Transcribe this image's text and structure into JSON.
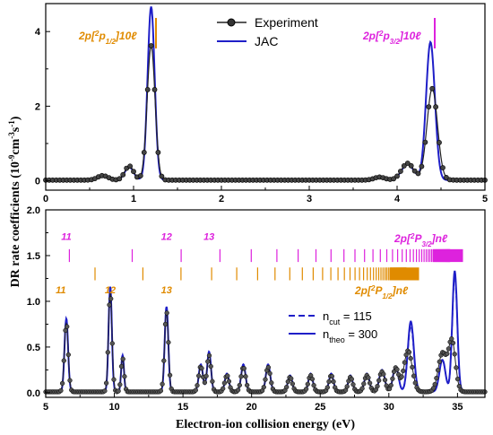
{
  "chart_data": [
    {
      "type": "line",
      "panel": "top",
      "xlim": [
        0,
        5
      ],
      "ylim": [
        -0.25,
        4.75
      ],
      "x_ticks": [
        "0",
        "1",
        "2",
        "3",
        "4",
        "5"
      ],
      "y_ticks": [
        "0",
        "2",
        "4"
      ],
      "legend": {
        "position": "top-center",
        "entries": [
          "Experiment",
          "JAC"
        ]
      },
      "colors": {
        "experiment": "#222222",
        "jac": "#1f1fc8",
        "p12": "#e08b00",
        "p32": "#dd22dd"
      },
      "series": [
        {
          "name": "Experiment",
          "style": "black line with circle markers",
          "peaks": [
            [
              0.65,
              0.12,
              0.06
            ],
            [
              0.95,
              0.38,
              0.05
            ],
            [
              1.2,
              3.6,
              0.045
            ],
            [
              3.8,
              0.08,
              0.06
            ],
            [
              4.12,
              0.45,
              0.07
            ],
            [
              4.4,
              2.45,
              0.06
            ]
          ]
        },
        {
          "name": "JAC",
          "style": "blue line",
          "peaks": [
            [
              0.65,
              0.1,
              0.06
            ],
            [
              0.95,
              0.35,
              0.05
            ],
            [
              1.2,
              4.65,
              0.04
            ],
            [
              3.8,
              0.07,
              0.06
            ],
            [
              4.12,
              0.42,
              0.07
            ],
            [
              4.38,
              3.7,
              0.05
            ]
          ]
        }
      ],
      "annotations": [
        {
          "text": "2p[²p₁/₂]10ℓ",
          "color": "#e08b00",
          "marker_x": 1.25
        },
        {
          "text": "2p[²p₃/₂]10ℓ",
          "color": "#dd22dd",
          "marker_x": 4.43
        }
      ]
    },
    {
      "type": "line",
      "panel": "bottom",
      "xlabel": "Electron-ion collision energy (eV)",
      "xlim": [
        5,
        37
      ],
      "ylim": [
        -0.05,
        2.0
      ],
      "x_ticks": [
        "5",
        "10",
        "15",
        "20",
        "25",
        "30",
        "35"
      ],
      "y_ticks": [
        "0.0",
        "0.5",
        "1.0",
        "1.5",
        "2.0"
      ],
      "legend": {
        "position": "lower-right",
        "entries": [
          "n_cut = 115",
          "n_theo = 300"
        ]
      },
      "series": [
        {
          "name": "n_cut = 115",
          "style": "blue dashed",
          "peaks": [
            [
              6.5,
              0.8,
              0.13
            ],
            [
              9.7,
              1.15,
              0.12
            ],
            [
              10.6,
              0.4,
              0.1
            ],
            [
              13.8,
              0.93,
              0.13
            ],
            [
              16.3,
              0.3,
              0.15
            ],
            [
              16.9,
              0.44,
              0.14
            ],
            [
              18.2,
              0.2,
              0.15
            ],
            [
              19.4,
              0.3,
              0.16
            ],
            [
              21.2,
              0.3,
              0.16
            ],
            [
              22.8,
              0.18,
              0.16
            ],
            [
              24.3,
              0.2,
              0.16
            ],
            [
              25.8,
              0.2,
              0.16
            ],
            [
              27.2,
              0.18,
              0.16
            ],
            [
              28.4,
              0.2,
              0.18
            ],
            [
              29.5,
              0.24,
              0.2
            ],
            [
              30.5,
              0.28,
              0.2
            ],
            [
              31.6,
              0.72,
              0.22
            ],
            [
              33.9,
              0.35,
              0.22
            ],
            [
              34.8,
              1.28,
              0.18
            ]
          ]
        },
        {
          "name": "n_theo = 300",
          "style": "blue solid",
          "peaks": [
            [
              6.5,
              0.8,
              0.13
            ],
            [
              9.7,
              1.15,
              0.12
            ],
            [
              10.6,
              0.4,
              0.1
            ],
            [
              13.8,
              0.93,
              0.13
            ],
            [
              16.3,
              0.3,
              0.15
            ],
            [
              16.9,
              0.44,
              0.14
            ],
            [
              18.2,
              0.2,
              0.15
            ],
            [
              19.4,
              0.3,
              0.16
            ],
            [
              21.2,
              0.3,
              0.16
            ],
            [
              22.8,
              0.18,
              0.16
            ],
            [
              24.3,
              0.2,
              0.16
            ],
            [
              25.8,
              0.2,
              0.16
            ],
            [
              27.2,
              0.18,
              0.16
            ],
            [
              28.4,
              0.2,
              0.18
            ],
            [
              29.5,
              0.24,
              0.2
            ],
            [
              30.5,
              0.28,
              0.2
            ],
            [
              31.6,
              0.77,
              0.22
            ],
            [
              33.9,
              0.35,
              0.22
            ],
            [
              34.8,
              1.32,
              0.18
            ]
          ]
        },
        {
          "name": "Experiment",
          "style": "black line with circle markers",
          "peaks": [
            [
              6.5,
              0.75,
              0.14
            ],
            [
              9.7,
              1.08,
              0.13
            ],
            [
              10.6,
              0.37,
              0.11
            ],
            [
              13.8,
              0.88,
              0.14
            ],
            [
              16.3,
              0.28,
              0.16
            ],
            [
              16.9,
              0.4,
              0.15
            ],
            [
              18.2,
              0.18,
              0.16
            ],
            [
              19.4,
              0.27,
              0.17
            ],
            [
              21.2,
              0.27,
              0.17
            ],
            [
              22.8,
              0.16,
              0.17
            ],
            [
              24.3,
              0.18,
              0.17
            ],
            [
              25.8,
              0.18,
              0.17
            ],
            [
              27.2,
              0.16,
              0.17
            ],
            [
              28.4,
              0.18,
              0.19
            ],
            [
              29.5,
              0.22,
              0.21
            ],
            [
              30.5,
              0.26,
              0.21
            ],
            [
              31.4,
              0.45,
              0.3
            ],
            [
              33.9,
              0.42,
              0.3
            ],
            [
              34.6,
              0.55,
              0.25
            ]
          ]
        }
      ],
      "rydberg_p32": {
        "label": "2p[²P₃/₂]nℓ",
        "color": "#dd22dd",
        "y": 1.5,
        "start_n": 11,
        "end_n": 60,
        "limit": 35.4,
        "scale": 3470,
        "labels": [
          "11",
          "12",
          "13"
        ],
        "label_energies": [
          6.5,
          13.8,
          16.9
        ]
      },
      "rydberg_p12": {
        "label": "2p[²P₁/₂]nℓ",
        "color": "#e08b00",
        "y": 1.3,
        "start_n": 11,
        "end_n": 60,
        "limit": 32.2,
        "scale": 3400,
        "labels": [
          "11",
          "12",
          "13"
        ],
        "label_energies": [
          6.1,
          9.7,
          13.8
        ]
      }
    }
  ],
  "ylabel": {
    "main": "DR rate coefficients (10",
    "sup1": "-9",
    "mid": "cm",
    "sup2": "-3",
    "mid2": "s",
    "sup3": "-1",
    "end": ")"
  }
}
